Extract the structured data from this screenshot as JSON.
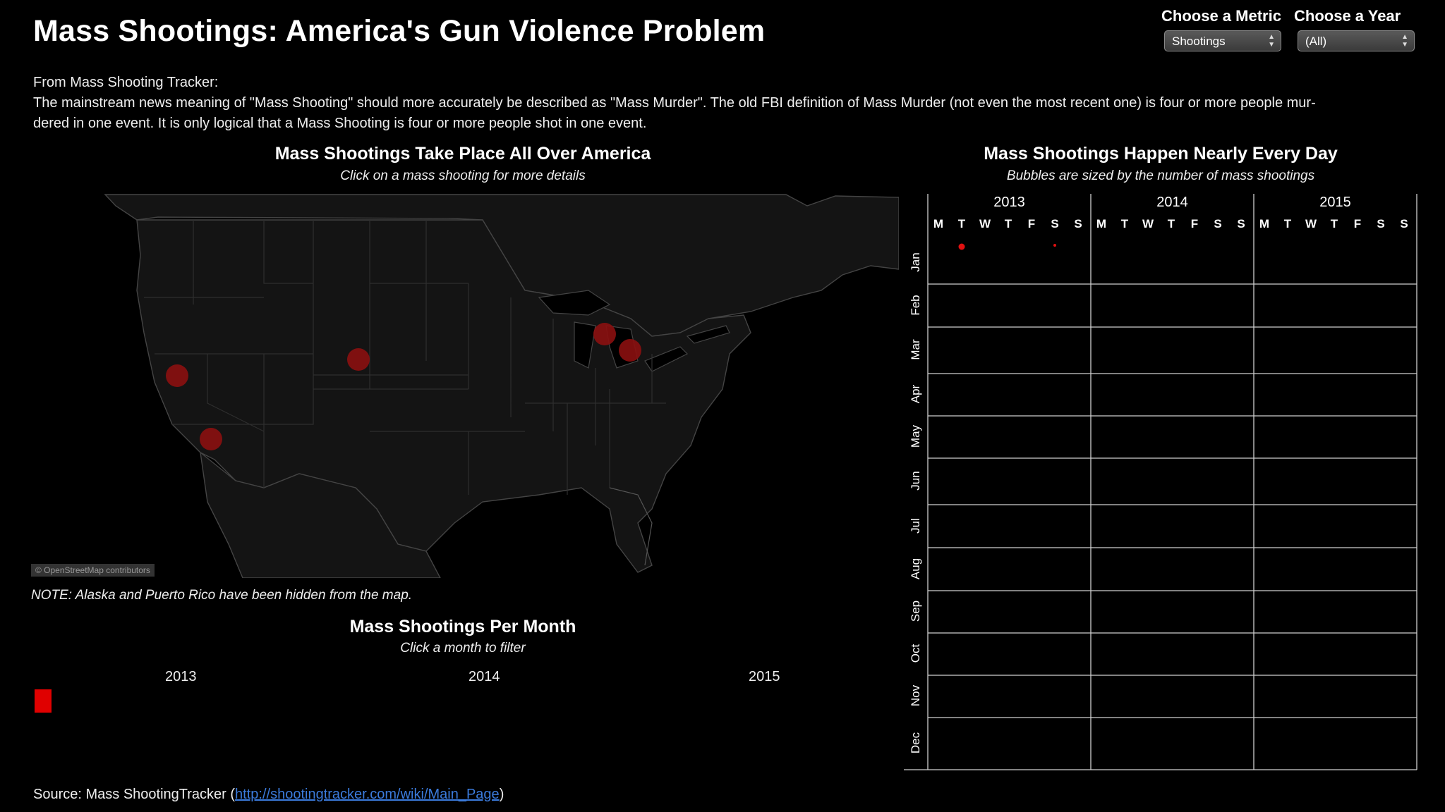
{
  "title": "Mass Shootings: America's Gun Violence Problem",
  "controls": {
    "metric_label": "Choose a Metric",
    "metric_value": "Shootings",
    "year_label": "Choose a Year",
    "year_value": "(All)"
  },
  "intro": {
    "source_line": "From Mass Shooting Tracker:",
    "body_line1": "The mainstream news meaning of \"Mass Shooting\" should more accurately be described as \"Mass Murder\". The old FBI definition of Mass Murder (not even the most recent one) is four or more people mur-",
    "body_line2": "dered in one event. It is only logical that a Mass Shooting is four or more people shot in one event."
  },
  "map_section": {
    "title": "Mass Shootings Take Place All Over America",
    "subtitle": "Click on a mass shooting for more details",
    "attribution": "© OpenStreetMap contributors",
    "note": "NOTE: Alaska and Puerto Rico have been hidden from the map.",
    "marker_color": "#8b0f0f",
    "markers": [
      {
        "name": "shooting-marker-northern-california"
      },
      {
        "name": "shooting-marker-southern-california"
      },
      {
        "name": "shooting-marker-colorado"
      },
      {
        "name": "shooting-marker-ohio-north"
      },
      {
        "name": "shooting-marker-ohio-south"
      }
    ]
  },
  "monthly_section": {
    "title": "Mass Shootings Per Month",
    "subtitle": "Click a month to filter",
    "years": [
      "2013",
      "2014",
      "2015"
    ],
    "bar_color": "#e00000"
  },
  "calendar_section": {
    "title": "Mass Shootings Happen Nearly Every Day",
    "subtitle": "Bubbles are sized by the number of  mass shootings",
    "years": [
      "2013",
      "2014",
      "2015"
    ],
    "weekdays": [
      "M",
      "T",
      "W",
      "T",
      "F",
      "S",
      "S"
    ],
    "months": [
      "Jan",
      "Feb",
      "Mar",
      "Apr",
      "May",
      "Jun",
      "Jul",
      "Aug",
      "Sep",
      "Oct",
      "Nov",
      "Dec"
    ],
    "bubble_color": "#e01010"
  },
  "source": {
    "prefix": "Source: Mass ShootingTracker (",
    "link": "http://shootingtracker.com/wiki/Main_Page",
    "suffix": ")"
  }
}
